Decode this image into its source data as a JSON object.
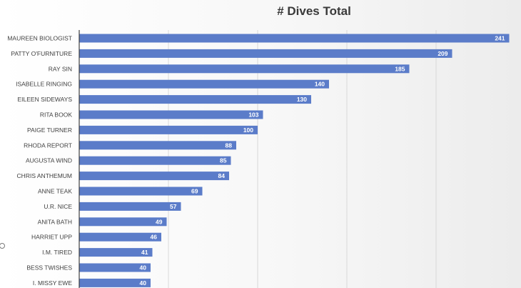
{
  "chart_data": {
    "type": "bar",
    "orientation": "horizontal",
    "title": "# Dives Total",
    "xlabel": "",
    "ylabel": "",
    "categories": [
      "MAUREEN BIOLOGIST",
      "PATTY O'FURNITURE",
      "RAY SIN",
      "ISABELLE RINGING",
      "EILEEN SIDEWAYS",
      "RITA BOOK",
      "PAIGE TURNER",
      "RHODA REPORT",
      "AUGUSTA WIND",
      "CHRIS ANTHEMUM",
      "ANNE TEAK",
      "U.R. NICE",
      "ANITA BATH",
      "HARRIET UPP",
      "I.M. TIRED",
      "BESS TWISHES",
      "I. MISSY EWE"
    ],
    "values": [
      241,
      209,
      185,
      140,
      130,
      103,
      100,
      88,
      85,
      84,
      69,
      57,
      49,
      46,
      41,
      40,
      40
    ],
    "xlim": [
      0,
      250
    ],
    "grid": true,
    "bar_color": "#5b7cc9",
    "data_labels": true
  }
}
